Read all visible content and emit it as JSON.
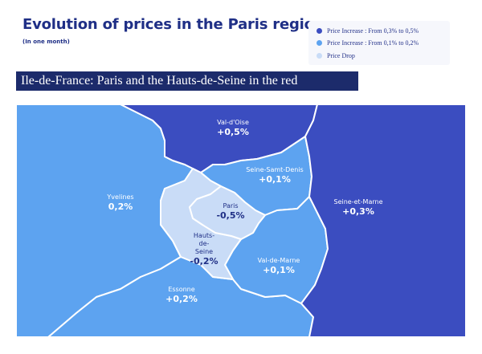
{
  "header": {
    "title": "Evolution of prices in the Paris region",
    "subtitle": "(In one month)"
  },
  "legend": {
    "items": [
      {
        "label": "Price Increase : From 0,3% to 0,5%",
        "color": "#3b4dc0"
      },
      {
        "label": "Price Increase : From 0,1% to 0,2%",
        "color": "#5da3f0"
      },
      {
        "label": "Price Drop",
        "color": "#c9dcf7"
      }
    ]
  },
  "banner": {
    "text": "Ile-de-France: Paris and the Hauts-de-Seine in the red"
  },
  "colors": {
    "dark_blue": "#3b4dc0",
    "medium_blue": "#5da3f0",
    "light_blue": "#c9dcf7",
    "border": "#ffffff",
    "title": "#1f2f86"
  },
  "regions": {
    "val_doise": {
      "name": "Val-d'Oise",
      "value": "+0,5%",
      "category": "increase_high"
    },
    "seine_saint_denis": {
      "name": "Seine-Samt-Denis",
      "value": "+0,1%",
      "category": "increase_low"
    },
    "yvelines": {
      "name": "Yvelines",
      "value": "0,2%",
      "category": "increase_low"
    },
    "paris": {
      "name": "Paris",
      "value": "-0,5%",
      "category": "drop"
    },
    "seine_et_marne": {
      "name": "Seine-et-Marne",
      "value": "+0,3%",
      "category": "increase_high"
    },
    "hauts_de_seine": {
      "name": "Hauts-\nde-\nSeine",
      "value": "-0,2%",
      "category": "drop"
    },
    "val_de_marne": {
      "name": "Val-de-Marne",
      "value": "+0,1%",
      "category": "increase_low"
    },
    "essonne": {
      "name": "Essonne",
      "value": "+0,2%",
      "category": "increase_low"
    }
  }
}
